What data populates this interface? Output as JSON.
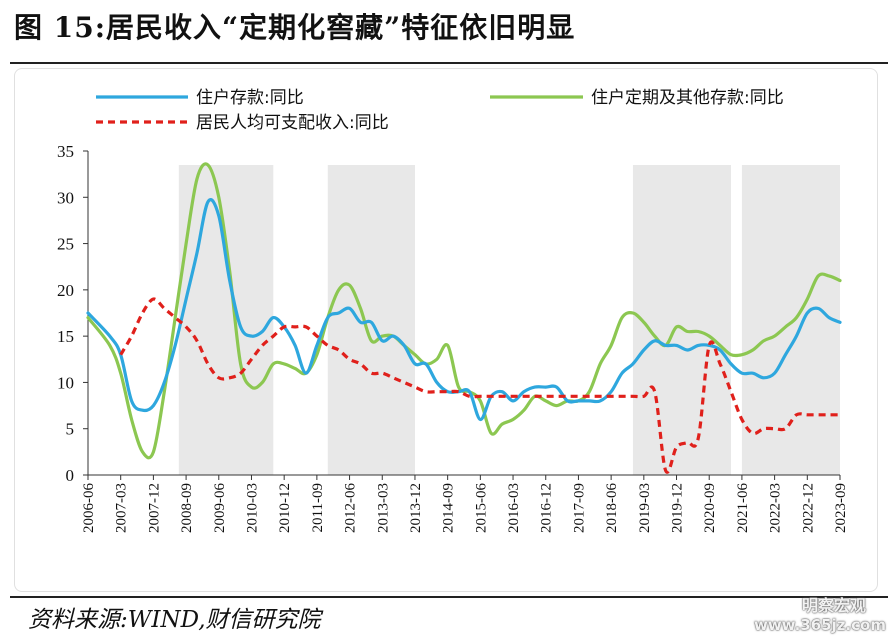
{
  "header": {
    "title": "图 15:居民收入“定期化窖藏”特征依旧明显"
  },
  "footer": {
    "source": "资料来源:WIND,财信研究院",
    "watermark_name": "明察宏观",
    "watermark_url": "www.365jz.com"
  },
  "colors": {
    "deposit": "#2ea7de",
    "time_deposit": "#8cc751",
    "income": "#e0201b",
    "shade": "#e8e8e8"
  },
  "chart_data": {
    "type": "line",
    "title": "",
    "xlabel": "",
    "ylabel": "",
    "ylim": [
      0,
      35
    ],
    "yticks": [
      0,
      5,
      10,
      15,
      20,
      25,
      30,
      35
    ],
    "xlim": [
      "2006-06",
      "2023-09"
    ],
    "xticks": [
      "2006-06",
      "2007-03",
      "2007-12",
      "2008-09",
      "2009-06",
      "2010-03",
      "2010-12",
      "2011-09",
      "2012-06",
      "2013-03",
      "2013-12",
      "2014-09",
      "2015-06",
      "2016-03",
      "2016-12",
      "2017-09",
      "2018-06",
      "2019-03",
      "2019-12",
      "2020-09",
      "2021-06",
      "2022-03",
      "2022-12",
      "2023-09"
    ],
    "shaded_periods": [
      [
        "2008-07",
        "2010-09"
      ],
      [
        "2011-12",
        "2013-12"
      ],
      [
        "2018-12",
        "2021-03"
      ],
      [
        "2021-06",
        "2023-09"
      ]
    ],
    "legend": [
      "住户存款:同比",
      "住户定期及其他存款:同比",
      "居民人均可支配收入:同比"
    ],
    "series": [
      {
        "name": "住户存款:同比",
        "key": "deposit",
        "style": "solid",
        "x": [
          "2006-06",
          "2006-12",
          "2007-03",
          "2007-06",
          "2007-09",
          "2007-12",
          "2008-03",
          "2008-06",
          "2008-09",
          "2008-12",
          "2009-03",
          "2009-06",
          "2009-09",
          "2009-12",
          "2010-03",
          "2010-06",
          "2010-09",
          "2010-12",
          "2011-03",
          "2011-06",
          "2011-09",
          "2011-12",
          "2012-03",
          "2012-06",
          "2012-09",
          "2012-12",
          "2013-03",
          "2013-06",
          "2013-09",
          "2013-12",
          "2014-03",
          "2014-06",
          "2014-09",
          "2014-12",
          "2015-03",
          "2015-06",
          "2015-09",
          "2015-12",
          "2016-03",
          "2016-06",
          "2016-09",
          "2016-12",
          "2017-03",
          "2017-06",
          "2017-09",
          "2017-12",
          "2018-03",
          "2018-06",
          "2018-09",
          "2018-12",
          "2019-03",
          "2019-06",
          "2019-09",
          "2019-12",
          "2020-03",
          "2020-06",
          "2020-09",
          "2020-12",
          "2021-03",
          "2021-06",
          "2021-09",
          "2021-12",
          "2022-03",
          "2022-06",
          "2022-09",
          "2022-12",
          "2023-03",
          "2023-06",
          "2023-09"
        ],
        "values": [
          17.5,
          15,
          13,
          8,
          7,
          7.5,
          10,
          14,
          19,
          24,
          29.5,
          28,
          21,
          16,
          15,
          15.5,
          17,
          16,
          14,
          11,
          14,
          17,
          17.5,
          18,
          16.5,
          16.5,
          14.5,
          15,
          14,
          12,
          12,
          10,
          9,
          9,
          9,
          6,
          8.5,
          9,
          8,
          9,
          9.5,
          9.5,
          9.5,
          8,
          8,
          8,
          8,
          9,
          11,
          12,
          13.5,
          14.5,
          14,
          14,
          13.5,
          14,
          14,
          13.5,
          12,
          11,
          11,
          10.5,
          11,
          13,
          15,
          17.5,
          18,
          17,
          16.5
        ]
      },
      {
        "name": "住户定期及其他存款:同比",
        "key": "time_deposit",
        "style": "solid",
        "x": [
          "2006-06",
          "2006-12",
          "2007-03",
          "2007-06",
          "2007-09",
          "2007-12",
          "2008-03",
          "2008-06",
          "2008-09",
          "2008-12",
          "2009-03",
          "2009-06",
          "2009-09",
          "2009-12",
          "2010-03",
          "2010-06",
          "2010-09",
          "2010-12",
          "2011-03",
          "2011-06",
          "2011-09",
          "2011-12",
          "2012-03",
          "2012-06",
          "2012-09",
          "2012-12",
          "2013-03",
          "2013-06",
          "2013-09",
          "2013-12",
          "2014-03",
          "2014-06",
          "2014-09",
          "2014-12",
          "2015-03",
          "2015-06",
          "2015-09",
          "2015-12",
          "2016-03",
          "2016-06",
          "2016-09",
          "2016-12",
          "2017-03",
          "2017-06",
          "2017-09",
          "2017-12",
          "2018-03",
          "2018-06",
          "2018-09",
          "2018-12",
          "2019-03",
          "2019-06",
          "2019-09",
          "2019-12",
          "2020-03",
          "2020-06",
          "2020-09",
          "2020-12",
          "2021-03",
          "2021-06",
          "2021-09",
          "2021-12",
          "2022-03",
          "2022-06",
          "2022-09",
          "2022-12",
          "2023-03",
          "2023-06",
          "2023-09"
        ],
        "values": [
          17,
          14,
          11,
          6,
          2.5,
          2.5,
          9,
          17,
          25,
          32,
          33.5,
          30,
          22,
          12,
          9.5,
          10,
          12,
          12,
          11.5,
          11,
          13,
          17,
          20,
          20.5,
          18,
          14.5,
          15,
          15,
          14,
          13,
          12,
          12.5,
          14,
          9.5,
          9,
          8,
          4.5,
          5.5,
          6,
          7,
          8.5,
          8,
          7.5,
          8,
          8,
          9,
          12,
          14,
          17,
          17.5,
          16.5,
          15,
          14,
          16,
          15.5,
          15.5,
          15,
          14,
          13,
          13,
          13.5,
          14.5,
          15,
          16,
          17,
          19,
          21.5,
          21.5,
          21
        ]
      },
      {
        "name": "居民人均可支配收入:同比",
        "key": "income",
        "style": "dashed",
        "x": [
          "2007-03",
          "2007-06",
          "2007-09",
          "2007-12",
          "2008-03",
          "2008-06",
          "2008-09",
          "2008-12",
          "2009-03",
          "2009-06",
          "2009-09",
          "2009-12",
          "2010-03",
          "2010-06",
          "2010-09",
          "2010-12",
          "2011-03",
          "2011-06",
          "2011-09",
          "2011-12",
          "2012-03",
          "2012-06",
          "2012-09",
          "2012-12",
          "2013-03",
          "2013-06",
          "2013-09",
          "2013-12",
          "2014-03",
          "2014-06",
          "2014-09",
          "2014-12",
          "2015-03",
          "2015-06",
          "2015-09",
          "2015-12",
          "2016-03",
          "2016-06",
          "2016-09",
          "2016-12",
          "2017-03",
          "2017-06",
          "2017-09",
          "2017-12",
          "2018-03",
          "2018-06",
          "2018-09",
          "2018-12",
          "2019-03",
          "2019-06",
          "2019-09",
          "2019-12",
          "2020-03",
          "2020-06",
          "2020-09",
          "2020-12",
          "2021-03",
          "2021-06",
          "2021-09",
          "2021-12",
          "2022-03",
          "2022-06",
          "2022-09",
          "2022-12",
          "2023-03",
          "2023-06",
          "2023-09"
        ],
        "values": [
          13,
          15,
          17.5,
          19,
          18,
          17,
          16,
          14.5,
          12,
          10.5,
          10.5,
          11,
          12.5,
          14,
          15,
          16,
          16,
          16,
          15,
          14,
          13.5,
          12.5,
          12,
          11,
          11,
          10.5,
          10,
          9.5,
          9,
          9,
          9,
          9,
          8.5,
          8.5,
          8.5,
          8.5,
          8.5,
          8.5,
          8.5,
          8.5,
          8.5,
          8.5,
          8.5,
          8.5,
          8.5,
          8.5,
          8.5,
          8.5,
          8.5,
          9,
          0.5,
          3,
          3.5,
          4,
          14,
          12,
          9,
          6,
          4.5,
          5,
          5,
          5,
          6.5,
          6.5,
          6.5,
          6.5,
          6.5
        ]
      }
    ]
  }
}
